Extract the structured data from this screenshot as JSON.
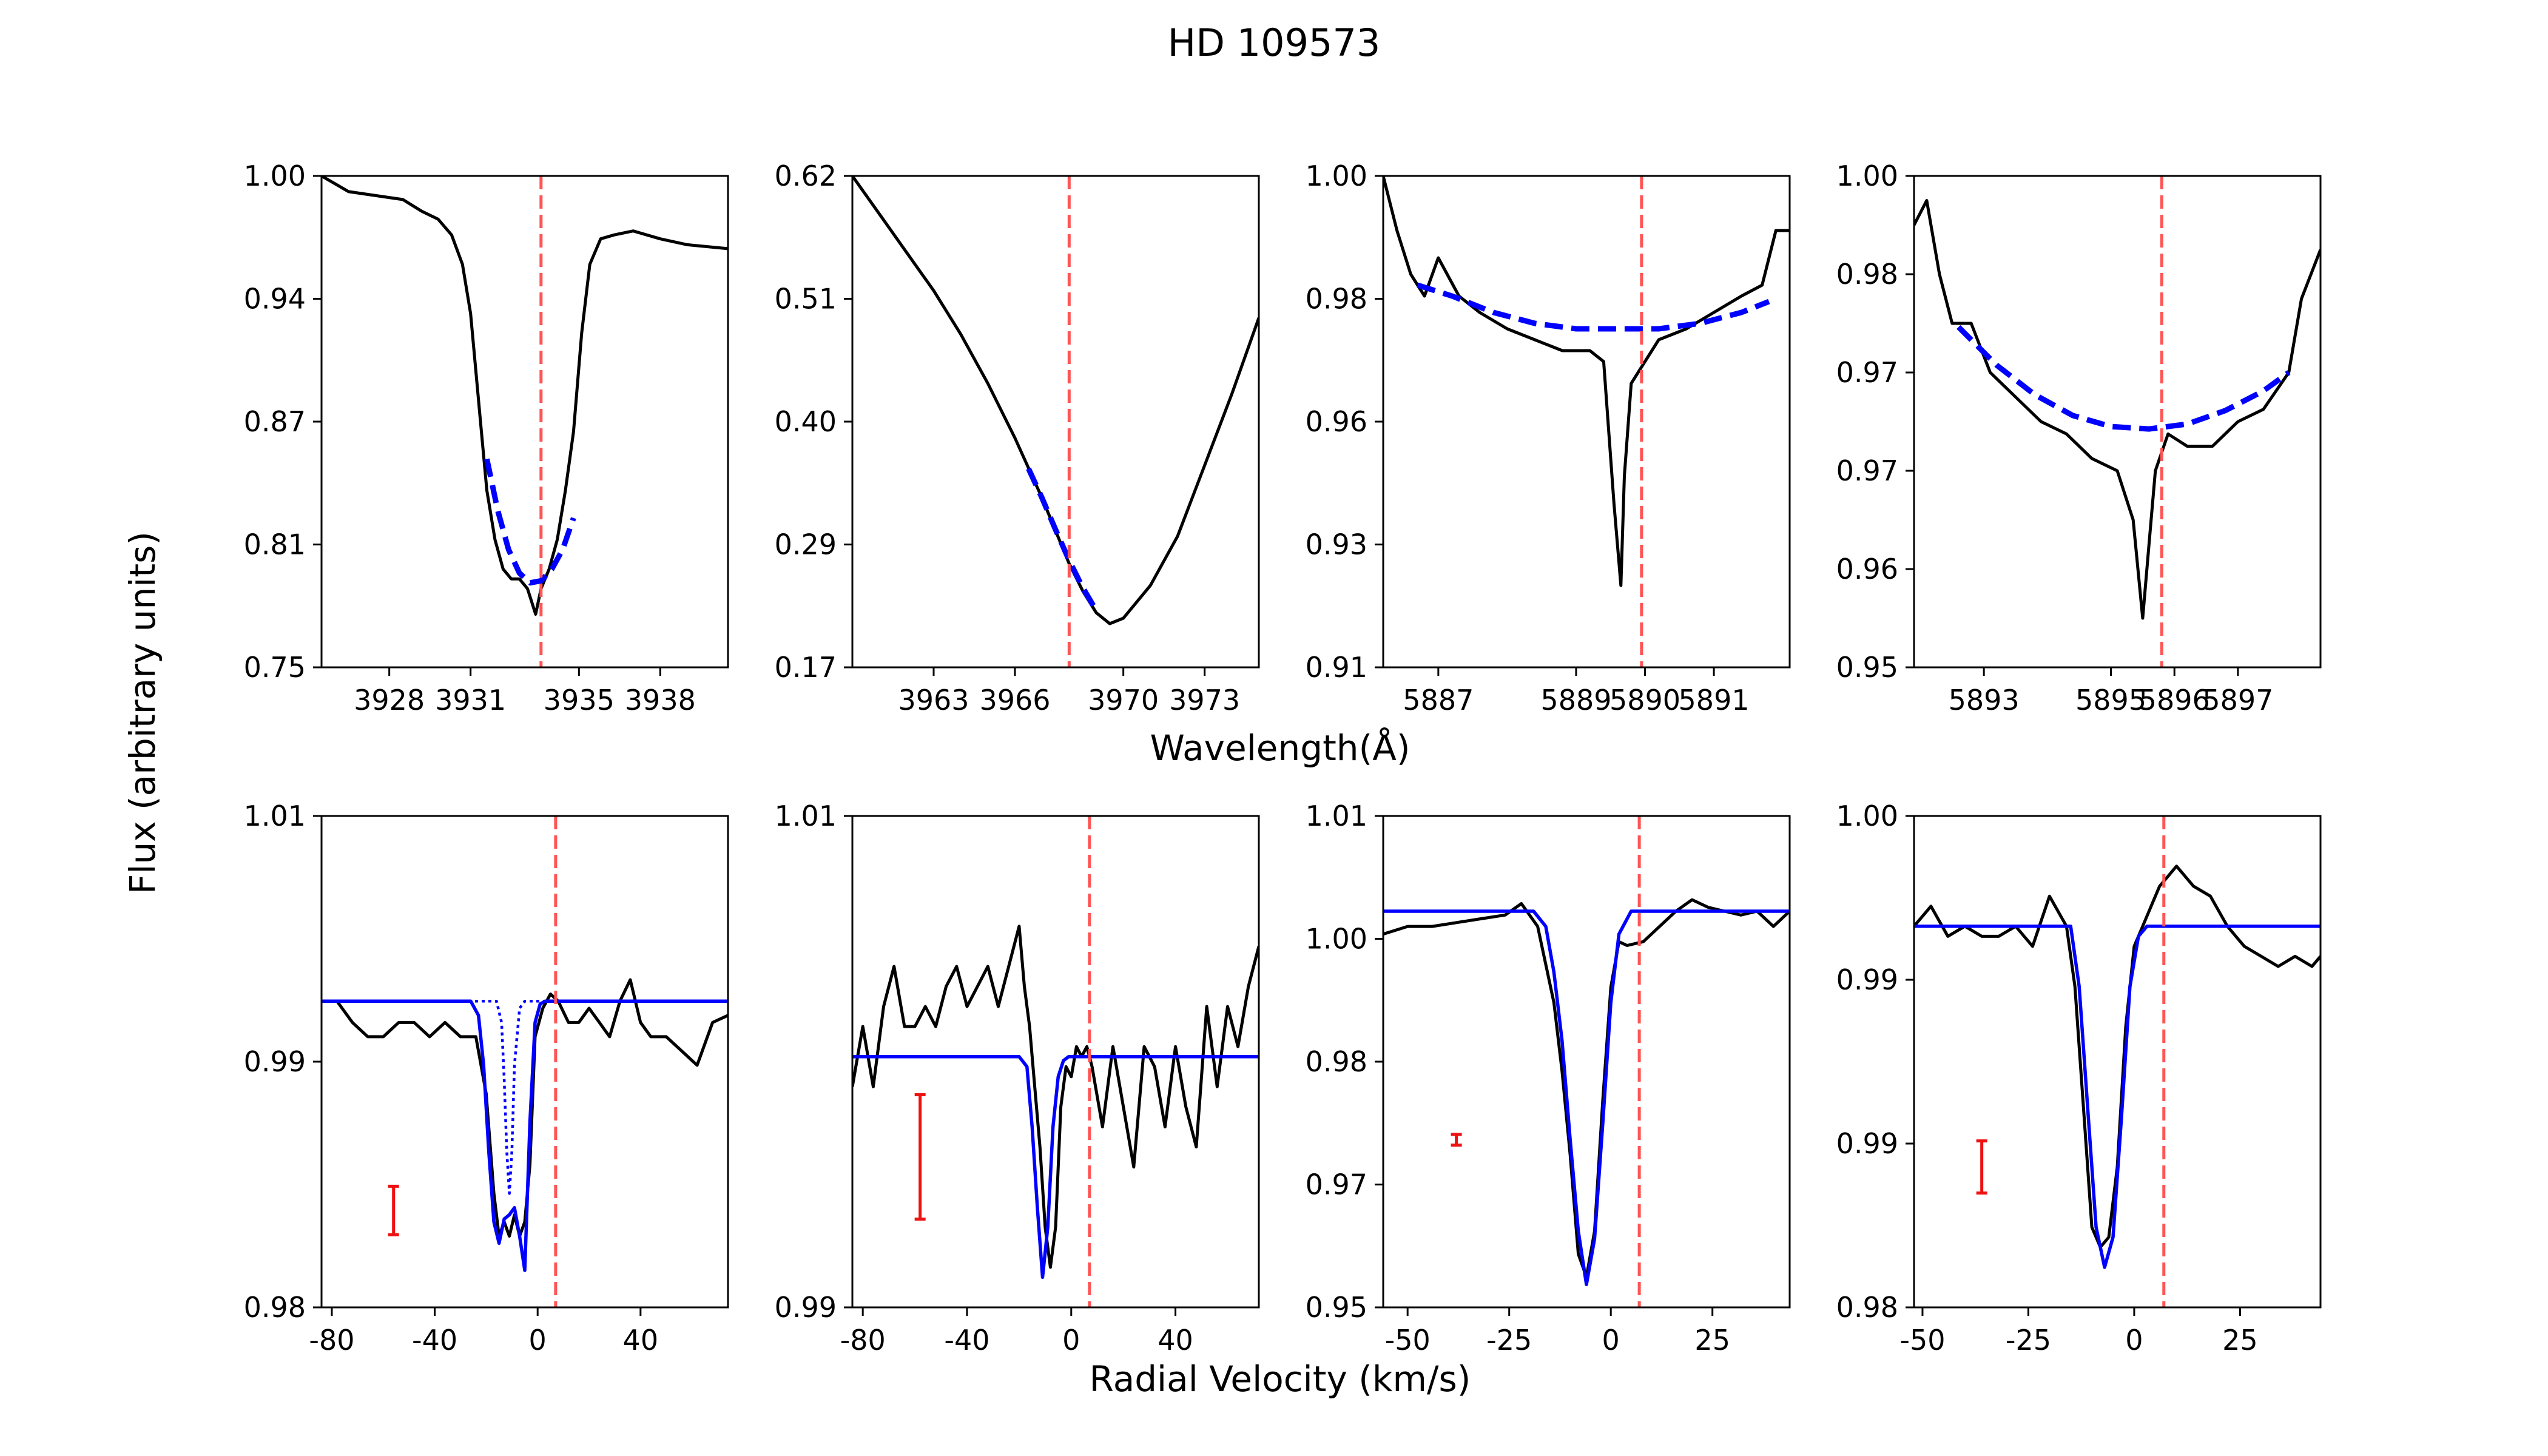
{
  "title": "HD 109573",
  "ylabel": "Flux (arbitrary units)",
  "xlabel_top": "Wavelength($\\AA$)",
  "xlabel_top_display": "Wavelength(Å)",
  "xlabel_bottom": "Radial Velocity (km/s)",
  "colors": {
    "data": "#000000",
    "fit": "#0000ff",
    "marker": "#ff5555",
    "errorbar": "#ee1111"
  },
  "chart_data": [
    {
      "type": "line",
      "row": "top",
      "col": 0,
      "xlim": [
        3925.5,
        3940.5
      ],
      "ylim": [
        0.75,
        1.0
      ],
      "xticks": [
        "3928",
        "3931",
        "3935",
        "3938"
      ],
      "yticks": [
        "0.75",
        "0.81",
        "0.87",
        "0.94",
        "1.00"
      ],
      "marker_x": 3933.6,
      "series": [
        {
          "name": "spectrum",
          "style": "solid",
          "color": "#000000",
          "x": [
            3925.5,
            3926.5,
            3927.5,
            3928.5,
            3929.2,
            3929.8,
            3930.3,
            3930.7,
            3931.0,
            3931.2,
            3931.4,
            3931.6,
            3931.9,
            3932.2,
            3932.5,
            3932.8,
            3933.1,
            3933.4,
            3933.6,
            3933.9,
            3934.2,
            3934.5,
            3934.8,
            3935.1,
            3935.4,
            3935.8,
            3936.3,
            3937.0,
            3938.0,
            3939.0,
            3940.5
          ],
          "y": [
            1.0,
            0.992,
            0.99,
            0.988,
            0.982,
            0.978,
            0.97,
            0.955,
            0.93,
            0.9,
            0.87,
            0.84,
            0.815,
            0.8,
            0.795,
            0.795,
            0.79,
            0.777,
            0.79,
            0.8,
            0.815,
            0.84,
            0.87,
            0.92,
            0.955,
            0.968,
            0.97,
            0.972,
            0.968,
            0.965,
            0.963
          ]
        },
        {
          "name": "fit",
          "style": "dashed",
          "color": "#0000ff",
          "x": [
            3931.6,
            3932.0,
            3932.4,
            3932.8,
            3933.2,
            3933.6,
            3934.0,
            3934.4,
            3934.8
          ],
          "y": [
            0.856,
            0.83,
            0.81,
            0.798,
            0.793,
            0.794,
            0.8,
            0.81,
            0.826
          ]
        }
      ]
    },
    {
      "type": "line",
      "row": "top",
      "col": 1,
      "xlim": [
        3960.0,
        3975.0
      ],
      "ylim": [
        0.17,
        0.62
      ],
      "xticks": [
        "3963",
        "3966",
        "3970",
        "3973"
      ],
      "yticks": [
        "0.17",
        "0.29",
        "0.40",
        "0.51",
        "0.62"
      ],
      "marker_x": 3968.0,
      "series": [
        {
          "name": "spectrum",
          "style": "solid",
          "color": "#000000",
          "x": [
            3960.0,
            3961.0,
            3962.0,
            3963.0,
            3964.0,
            3965.0,
            3966.0,
            3967.0,
            3967.5,
            3968.0,
            3968.5,
            3969.0,
            3969.5,
            3970.0,
            3971.0,
            3972.0,
            3973.0,
            3974.0,
            3975.0
          ],
          "y": [
            0.62,
            0.585,
            0.55,
            0.515,
            0.475,
            0.43,
            0.38,
            0.325,
            0.295,
            0.265,
            0.24,
            0.22,
            0.21,
            0.215,
            0.245,
            0.29,
            0.355,
            0.42,
            0.49
          ]
        },
        {
          "name": "fit",
          "style": "dashed",
          "color": "#0000ff",
          "x": [
            3966.5,
            3967.0,
            3967.5,
            3968.0,
            3968.5,
            3969.0
          ],
          "y": [
            0.352,
            0.325,
            0.296,
            0.268,
            0.243,
            0.222
          ]
        }
      ]
    },
    {
      "type": "line",
      "row": "top",
      "col": 2,
      "xlim": [
        5886.2,
        5892.1
      ],
      "ylim": [
        0.91,
        1.0
      ],
      "xticks": [
        "5887",
        "5889",
        "5890",
        "5891"
      ],
      "yticks": [
        "0.91",
        "0.93",
        "0.96",
        "0.98",
        "1.00"
      ],
      "marker_x": 5889.95,
      "series": [
        {
          "name": "spectrum",
          "style": "solid",
          "color": "#000000",
          "x": [
            5886.2,
            5886.4,
            5886.6,
            5886.8,
            5887.0,
            5887.3,
            5887.6,
            5888.0,
            5888.4,
            5888.8,
            5889.2,
            5889.4,
            5889.55,
            5889.65,
            5889.7,
            5889.8,
            5889.95,
            5890.2,
            5890.6,
            5891.0,
            5891.4,
            5891.7,
            5891.9,
            5892.1
          ],
          "y": [
            1.0,
            0.99,
            0.982,
            0.978,
            0.985,
            0.978,
            0.975,
            0.972,
            0.97,
            0.968,
            0.968,
            0.966,
            0.94,
            0.925,
            0.945,
            0.962,
            0.965,
            0.97,
            0.972,
            0.975,
            0.978,
            0.98,
            0.99,
            0.99
          ]
        },
        {
          "name": "fit",
          "style": "dashed",
          "color": "#0000ff",
          "x": [
            5886.7,
            5887.2,
            5887.8,
            5888.4,
            5889.0,
            5889.6,
            5890.2,
            5890.8,
            5891.4,
            5891.8
          ],
          "y": [
            0.98,
            0.978,
            0.975,
            0.973,
            0.972,
            0.972,
            0.972,
            0.973,
            0.975,
            0.977
          ]
        }
      ]
    },
    {
      "type": "line",
      "row": "top",
      "col": 3,
      "xlim": [
        5891.9,
        5898.3
      ],
      "ylim": [
        0.95,
        0.99
      ],
      "xticks": [
        "5893",
        "5895",
        "5896",
        "5897"
      ],
      "yticks": [
        "0.95",
        "0.96",
        "0.97",
        "0.97",
        "0.98",
        "1.00"
      ],
      "marker_x": 5895.8,
      "series": [
        {
          "name": "spectrum",
          "style": "solid",
          "color": "#000000",
          "x": [
            5891.9,
            5892.1,
            5892.3,
            5892.5,
            5892.8,
            5893.1,
            5893.5,
            5893.9,
            5894.3,
            5894.7,
            5895.1,
            5895.35,
            5895.5,
            5895.6,
            5895.7,
            5895.9,
            5896.2,
            5896.6,
            5897.0,
            5897.4,
            5897.8,
            5898.0,
            5898.3
          ],
          "y": [
            0.986,
            0.988,
            0.982,
            0.978,
            0.978,
            0.974,
            0.972,
            0.97,
            0.969,
            0.967,
            0.966,
            0.962,
            0.954,
            0.96,
            0.966,
            0.969,
            0.968,
            0.968,
            0.97,
            0.971,
            0.974,
            0.98,
            0.984
          ]
        },
        {
          "name": "fit",
          "style": "dashed",
          "color": "#0000ff",
          "x": [
            5892.6,
            5893.2,
            5893.8,
            5894.4,
            5895.0,
            5895.6,
            5896.2,
            5896.8,
            5897.4,
            5897.8
          ],
          "y": [
            0.9777,
            0.9746,
            0.9722,
            0.9705,
            0.9696,
            0.9694,
            0.9698,
            0.9709,
            0.9725,
            0.974
          ]
        }
      ]
    },
    {
      "type": "line",
      "row": "bottom",
      "col": 0,
      "xlim": [
        -84,
        74
      ],
      "ylim": [
        0.978,
        1.0125
      ],
      "xticks": [
        "-80",
        "-40",
        "0",
        "40"
      ],
      "yticks": [
        "0.98",
        "0.99",
        "1.01"
      ],
      "marker_x": 7,
      "errorbar": {
        "x": -56,
        "y": 0.9848,
        "err": 0.0017
      },
      "series": [
        {
          "name": "spectrum",
          "style": "solid",
          "color": "#000000",
          "x": [
            -84,
            -78,
            -72,
            -66,
            -60,
            -54,
            -48,
            -42,
            -36,
            -30,
            -24,
            -20,
            -17,
            -15,
            -13,
            -11,
            -9,
            -7,
            -5,
            -3,
            -1,
            2,
            5,
            8,
            12,
            16,
            20,
            24,
            28,
            32,
            36,
            40,
            44,
            50,
            56,
            62,
            68,
            74
          ],
          "y": [
            0.9995,
            0.9995,
            0.998,
            0.997,
            0.997,
            0.998,
            0.998,
            0.997,
            0.998,
            0.997,
            0.997,
            0.993,
            0.986,
            0.983,
            0.984,
            0.983,
            0.9845,
            0.983,
            0.984,
            0.988,
            0.997,
            0.999,
            1.0,
            0.9995,
            0.998,
            0.998,
            0.999,
            0.998,
            0.997,
            0.9995,
            1.001,
            0.998,
            0.997,
            0.997,
            0.996,
            0.995,
            0.998,
            0.9985
          ]
        },
        {
          "name": "fit-total",
          "style": "solid",
          "color": "#0000ff",
          "x": [
            -84,
            -26,
            -23,
            -21,
            -19,
            -17,
            -15,
            -13,
            -11,
            -9,
            -7,
            -5,
            -3,
            -1,
            1,
            3,
            74
          ],
          "y": [
            0.9995,
            0.9995,
            0.9985,
            0.995,
            0.989,
            0.984,
            0.9825,
            0.9842,
            0.9845,
            0.985,
            0.983,
            0.9806,
            0.991,
            0.998,
            0.9993,
            0.9995,
            0.9995
          ]
        },
        {
          "name": "fit-component",
          "style": "dotted",
          "color": "#0000ff",
          "x": [
            -84,
            -16,
            -14,
            -13,
            -12,
            -11,
            -10,
            -9,
            -7,
            -5,
            74
          ],
          "y": [
            0.9995,
            0.9995,
            0.998,
            0.994,
            0.989,
            0.986,
            0.989,
            0.995,
            0.999,
            0.9995,
            0.9995
          ]
        }
      ]
    },
    {
      "type": "line",
      "row": "bottom",
      "col": 1,
      "xlim": [
        -84,
        72
      ],
      "ylim": [
        0.988,
        1.0125
      ],
      "xticks": [
        "-80",
        "-40",
        "0",
        "40"
      ],
      "yticks": [
        "0.99",
        "1.01"
      ],
      "marker_x": 7,
      "errorbar": {
        "x": -58,
        "y": 0.9955,
        "err": 0.0031
      },
      "series": [
        {
          "name": "spectrum",
          "style": "solid",
          "color": "#000000",
          "x": [
            -84,
            -80,
            -76,
            -72,
            -68,
            -64,
            -60,
            -56,
            -52,
            -48,
            -44,
            -40,
            -36,
            -32,
            -28,
            -24,
            -20,
            -18,
            -16,
            -14,
            -12,
            -10,
            -8,
            -6,
            -4,
            -2,
            0,
            2,
            4,
            6,
            8,
            12,
            16,
            20,
            24,
            28,
            32,
            36,
            40,
            44,
            48,
            52,
            56,
            60,
            64,
            68,
            72
          ],
          "y": [
            0.999,
            1.002,
            0.999,
            1.003,
            1.005,
            1.002,
            1.002,
            1.003,
            1.002,
            1.004,
            1.005,
            1.003,
            1.004,
            1.005,
            1.003,
            1.005,
            1.007,
            1.004,
            1.002,
            0.999,
            0.996,
            0.992,
            0.99,
            0.992,
            0.998,
            1.0,
            0.9995,
            1.001,
            1.0005,
            1.001,
            1.0,
            0.997,
            1.001,
            0.998,
            0.995,
            1.001,
            1.0,
            0.997,
            1.001,
            0.998,
            0.996,
            1.003,
            0.999,
            1.003,
            1.001,
            1.004,
            1.006
          ]
        },
        {
          "name": "fit",
          "style": "solid",
          "color": "#0000ff",
          "x": [
            -84,
            -20,
            -17,
            -15,
            -13,
            -11,
            -9,
            -7,
            -5,
            -3,
            -1,
            72
          ],
          "y": [
            1.0005,
            1.0005,
            1.0,
            0.997,
            0.993,
            0.9895,
            0.992,
            0.997,
            0.9995,
            1.0003,
            1.0005,
            1.0005
          ]
        }
      ]
    },
    {
      "type": "line",
      "row": "bottom",
      "col": 2,
      "xlim": [
        -56,
        44
      ],
      "ylim": [
        0.948,
        1.0125
      ],
      "xticks": [
        "-50",
        "-25",
        "0",
        "25"
      ],
      "yticks": [
        "0.95",
        "0.97",
        "0.98",
        "1.00",
        "1.01"
      ],
      "marker_x": 7,
      "errorbar": {
        "x": -38,
        "y": 0.97,
        "err": 0.0007
      },
      "series": [
        {
          "name": "spectrum",
          "style": "solid",
          "color": "#000000",
          "x": [
            -56,
            -50,
            -44,
            -38,
            -32,
            -26,
            -22,
            -18,
            -14,
            -12,
            -10,
            -8,
            -6,
            -4,
            -2,
            0,
            2,
            4,
            8,
            12,
            16,
            20,
            24,
            28,
            32,
            36,
            40,
            44
          ],
          "y": [
            0.997,
            0.998,
            0.998,
            0.9985,
            0.999,
            0.9995,
            1.001,
            0.998,
            0.988,
            0.979,
            0.968,
            0.955,
            0.952,
            0.958,
            0.975,
            0.99,
            0.996,
            0.9955,
            0.996,
            0.998,
            1.0,
            1.0015,
            1.0005,
            1.0,
            0.9995,
            1.0,
            0.998,
            1.0
          ]
        },
        {
          "name": "fit",
          "style": "solid",
          "color": "#0000ff",
          "x": [
            -56,
            -19,
            -16,
            -14,
            -12,
            -10,
            -8,
            -6,
            -4,
            -2,
            0,
            2,
            5,
            44
          ],
          "y": [
            1.0,
            1.0,
            0.998,
            0.992,
            0.983,
            0.97,
            0.958,
            0.951,
            0.957,
            0.972,
            0.988,
            0.997,
            1.0,
            1.0
          ]
        }
      ]
    },
    {
      "type": "line",
      "row": "bottom",
      "col": 3,
      "xlim": [
        -52,
        44
      ],
      "ylim": [
        0.978,
        1.0025
      ],
      "xticks": [
        "-50",
        "-25",
        "0",
        "25"
      ],
      "yticks": [
        "0.98",
        "0.99",
        "0.99",
        "1.00"
      ],
      "marker_x": 7,
      "errorbar": {
        "x": -36,
        "y": 0.985,
        "err": 0.0013
      },
      "series": [
        {
          "name": "spectrum",
          "style": "solid",
          "color": "#000000",
          "x": [
            -52,
            -48,
            -44,
            -40,
            -36,
            -32,
            -28,
            -24,
            -20,
            -16,
            -14,
            -12,
            -10,
            -8,
            -6,
            -4,
            -2,
            0,
            2,
            4,
            6,
            8,
            10,
            14,
            18,
            22,
            26,
            30,
            34,
            38,
            42,
            44
          ],
          "y": [
            0.997,
            0.998,
            0.9965,
            0.997,
            0.9965,
            0.9965,
            0.997,
            0.996,
            0.9985,
            0.997,
            0.994,
            0.988,
            0.982,
            0.981,
            0.9815,
            0.985,
            0.992,
            0.996,
            0.997,
            0.998,
            0.999,
            0.9995,
            1.0,
            0.999,
            0.9985,
            0.997,
            0.996,
            0.9955,
            0.995,
            0.9955,
            0.995,
            0.9955
          ]
        },
        {
          "name": "fit",
          "style": "solid",
          "color": "#0000ff",
          "x": [
            -52,
            -15,
            -13,
            -11,
            -9,
            -7,
            -5,
            -3,
            -1,
            1,
            3,
            44
          ],
          "y": [
            0.997,
            0.997,
            0.994,
            0.988,
            0.982,
            0.98,
            0.9815,
            0.9875,
            0.994,
            0.9965,
            0.997,
            0.997
          ]
        }
      ]
    }
  ]
}
